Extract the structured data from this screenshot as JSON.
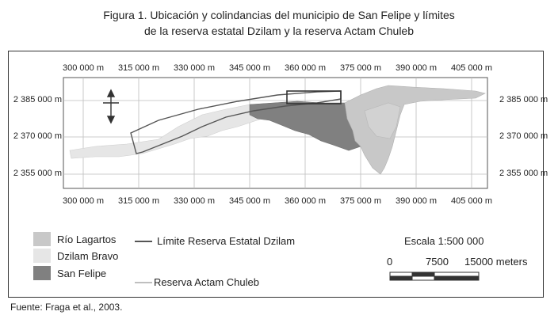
{
  "title_line1": "Figura 1. Ubicación y colindancias del municipio de San Felipe y límites",
  "title_line2": "de la reserva estatal Dzilam y la reserva Actam Chuleb",
  "x_ticks": [
    "300 000 m",
    "315 000 m",
    "330 000 m",
    "345 000 m",
    "360 000 m",
    "375 000 m",
    "390 000 m",
    "405 000 m"
  ],
  "y_ticks": [
    "2 385 000 m",
    "2 370 000 m",
    "2 355 000 m"
  ],
  "legend": {
    "rio_lagartos": {
      "label": "Río Lagartos",
      "color": "#c8c8c8"
    },
    "dzilam_bravo": {
      "label": "Dzilam Bravo",
      "color": "#e6e6e6"
    },
    "san_felipe": {
      "label": "San Felipe",
      "color": "#808080"
    },
    "dzilam_reserve": {
      "label": "Límite Reserva Estatal Dzilam"
    },
    "actam_chuleb": {
      "label": "Reserva Actam Chuleb"
    }
  },
  "scale": {
    "title": "Escala 1:500 000",
    "label_0": "0",
    "label_mid": "7500",
    "label_end": "15000 meters"
  },
  "source": "Fuente: Fraga et al., 2003."
}
